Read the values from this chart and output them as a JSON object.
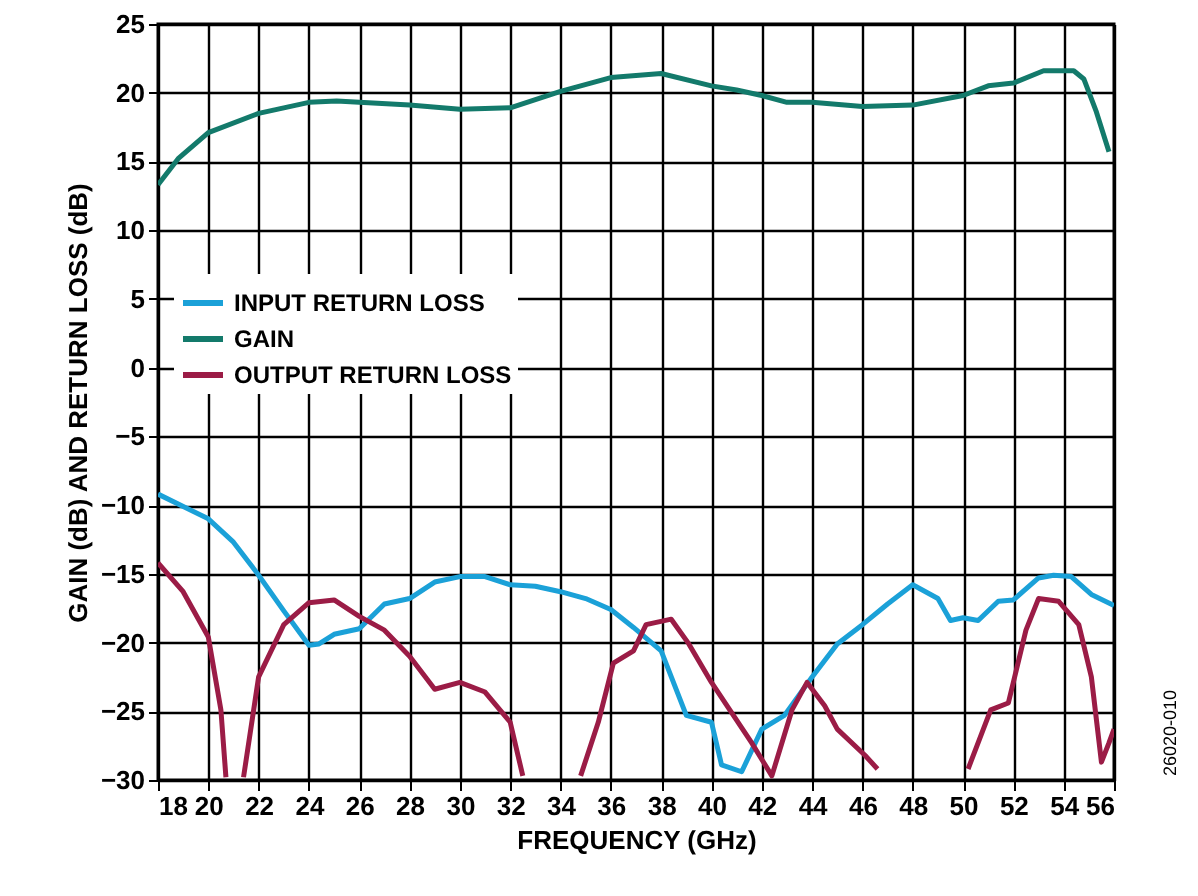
{
  "chart_data": {
    "type": "line",
    "xlabel": "FREQUENCY (GHz)",
    "ylabel": "GAIN (dB) AND RETURN LOSS (dB)",
    "xlim": [
      18,
      56
    ],
    "xticks": [
      18,
      20,
      22,
      24,
      26,
      28,
      30,
      32,
      34,
      36,
      38,
      40,
      42,
      44,
      46,
      48,
      50,
      52,
      54,
      56
    ],
    "ylim": [
      -30,
      25
    ],
    "yticks": [
      -30,
      -25,
      -20,
      -15,
      -10,
      -5,
      0,
      5,
      10,
      15,
      20,
      25
    ],
    "grid": true,
    "legend": "left",
    "line_style": "solid",
    "marker": "none",
    "annotations": [
      "26020-010"
    ],
    "series": [
      {
        "name": "INPUT RETURN LOSS",
        "color": "#1ba1d8",
        "x": [
          18,
          20,
          21,
          22,
          23,
          24,
          24.4,
          25,
          26,
          27,
          28,
          29,
          30,
          31,
          32,
          33,
          34,
          35,
          36,
          36.9,
          38,
          39,
          40,
          40.4,
          41.2,
          42,
          42.9,
          44,
          45,
          46,
          47,
          48,
          49,
          49.5,
          50,
          50.6,
          51.4,
          52,
          53,
          53.6,
          54.3,
          55.1,
          56
        ],
        "values": [
          -9.2,
          -11,
          -12.7,
          -15.1,
          -17.7,
          -20.2,
          -20.1,
          -19.4,
          -19,
          -17.2,
          -16.8,
          -15.6,
          -15.2,
          -15.2,
          -15.8,
          -15.9,
          -16.3,
          -16.8,
          -17.6,
          -18.9,
          -20.6,
          -25.3,
          -25.8,
          -28.9,
          -29.4,
          -26.3,
          -25.3,
          -22.5,
          -20.1,
          -18.7,
          -17.2,
          -15.8,
          -16.8,
          -18.4,
          -18.2,
          -18.4,
          -17,
          -16.9,
          -15.3,
          -15.1,
          -15.2,
          -16.5,
          -17.3
        ]
      },
      {
        "name": "GAIN",
        "color": "#137a6b",
        "x": [
          18,
          18.8,
          20,
          22,
          24,
          25.1,
          26,
          28,
          30,
          32,
          34,
          36,
          38,
          40,
          41,
          42,
          43,
          44,
          46,
          48,
          50,
          51,
          52,
          53.2,
          54.4,
          54.8,
          55.3,
          55.8
        ],
        "values": [
          13.3,
          15.2,
          17.1,
          18.5,
          19.3,
          19.4,
          19.3,
          19.1,
          18.8,
          18.9,
          20.1,
          21.1,
          21.4,
          20.5,
          20.2,
          19.8,
          19.3,
          19.3,
          19,
          19.1,
          19.8,
          20.5,
          20.7,
          21.6,
          21.6,
          21,
          18.6,
          15.7
        ]
      },
      {
        "name": "OUTPUT RETURN LOSS",
        "color": "#9b1c46",
        "x": [
          18,
          19,
          20,
          20.5,
          20.7,
          21.1,
          21.4,
          22,
          23,
          24,
          25,
          26,
          27,
          28,
          29,
          30,
          31,
          32,
          32.5,
          33.5,
          34.8,
          35.5,
          36.1,
          36.9,
          37.4,
          38.4,
          39.1,
          40,
          40.8,
          41.6,
          42.4,
          43.2,
          43.8,
          44.5,
          45,
          46.1,
          46.6,
          48.5,
          50.2,
          51.1,
          51.8,
          52.5,
          53,
          53.8,
          54.6,
          55.1,
          55.5,
          55.8,
          56
        ],
        "values": [
          -14.2,
          -16.3,
          -19.6,
          -24.9,
          -29.8,
          null,
          -29.8,
          -22.5,
          -18.7,
          -17.1,
          -16.9,
          -18.1,
          -19.1,
          -21,
          -23.4,
          -22.9,
          -23.6,
          -25.8,
          -29.7,
          null,
          -29.7,
          -25.8,
          -21.5,
          -20.6,
          -18.7,
          -18.3,
          -20.1,
          -22.9,
          -25.1,
          -27.3,
          -29.7,
          -24.9,
          -22.9,
          -24.6,
          -26.3,
          -28.2,
          -29.2,
          null,
          -29.2,
          -24.9,
          -24.4,
          -19.1,
          -16.8,
          -17,
          -18.7,
          -22.5,
          -28.7,
          -27.3,
          -26.3
        ]
      }
    ]
  }
}
